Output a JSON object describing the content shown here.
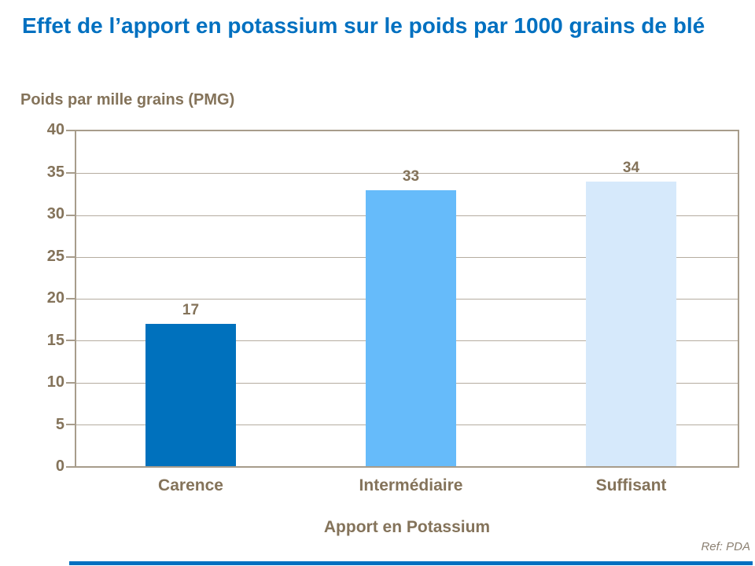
{
  "slide": {
    "reference": "Ref: PDA"
  },
  "chart_data": {
    "type": "bar",
    "title": "Effet de l’apport en potassium sur le poids par 1000 grains de blé",
    "axis_title_y": "Poids par mille grains (PMG)",
    "axis_title_x": "Apport en Potassium",
    "categories": [
      "Carence",
      "Intermédiaire",
      "Suffisant"
    ],
    "values": [
      17,
      33,
      34
    ],
    "ylim": [
      0,
      40
    ],
    "yticks": [
      40,
      35,
      30,
      25,
      20,
      15,
      10,
      5,
      0
    ],
    "grid": "horizontal",
    "legend": "none",
    "bar_colors": [
      "#0071BD",
      "#66BBFA",
      "#D6E9FB"
    ],
    "colors": {
      "title_blue": "#0070C0",
      "text_brown": "#84735A",
      "gridline": "#B5ACA0",
      "axis_frame": "#A79C8B",
      "accent_bar": "#0070C0"
    }
  }
}
